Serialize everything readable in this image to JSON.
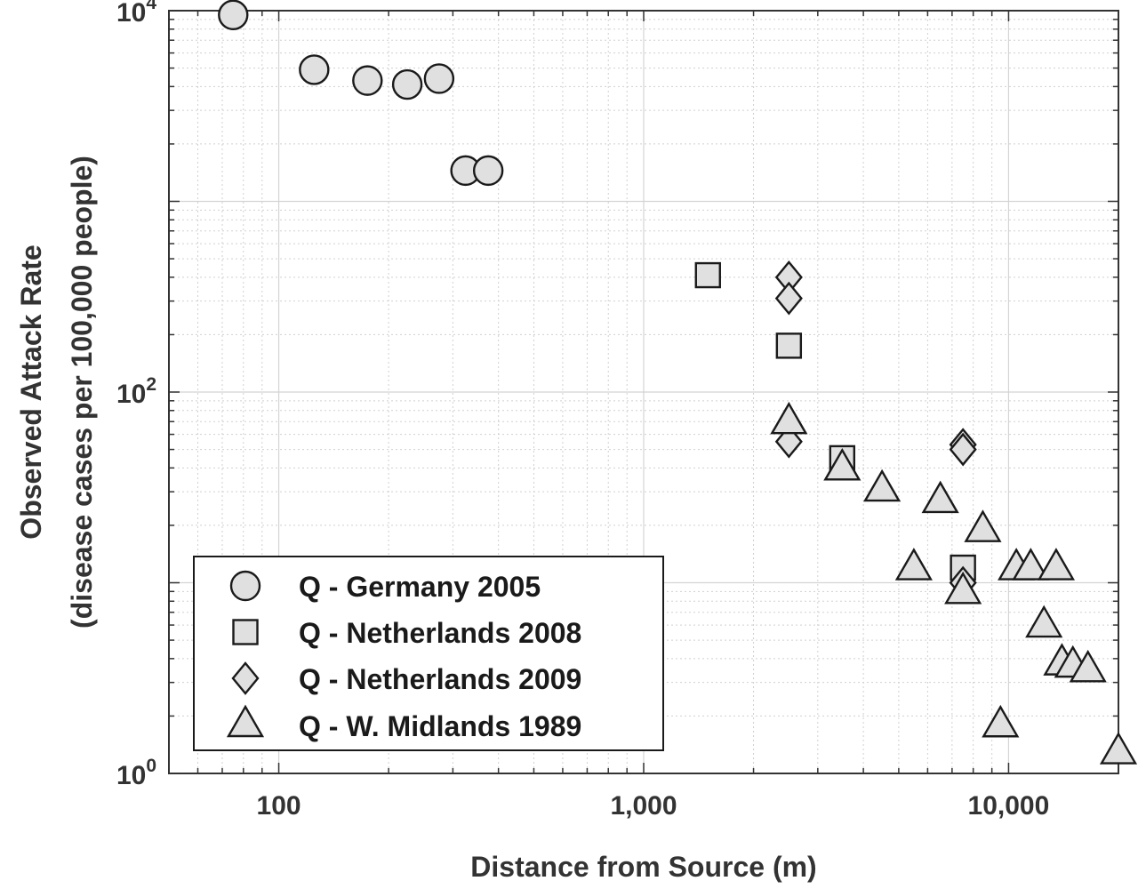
{
  "chart_data": {
    "type": "scatter",
    "xscale": "log",
    "yscale": "log",
    "xlim": [
      50,
      20000
    ],
    "ylim": [
      1,
      10000
    ],
    "xticks": [
      {
        "value": 100,
        "label": "100"
      },
      {
        "value": 1000,
        "label": "1,000"
      },
      {
        "value": 10000,
        "label": "10,000"
      }
    ],
    "yticks": [
      {
        "value": 1,
        "base": "10",
        "exp": "0"
      },
      {
        "value": 100,
        "base": "10",
        "exp": "2"
      },
      {
        "value": 10000,
        "base": "10",
        "exp": "4"
      }
    ],
    "xlabel": "Distance from Source (m)",
    "ylabel_line1": "Observed Attack Rate",
    "ylabel_line2": "(disease cases per 100,000 people)",
    "grid": true,
    "legend_position": "bottom-left",
    "series": [
      {
        "name": "Q - Germany 2005",
        "marker": "circle",
        "points": [
          [
            75,
            9500
          ],
          [
            125,
            4900
          ],
          [
            175,
            4300
          ],
          [
            225,
            4100
          ],
          [
            275,
            4400
          ],
          [
            325,
            1450
          ],
          [
            375,
            1450
          ]
        ]
      },
      {
        "name": "Q - Netherlands 2008",
        "marker": "square",
        "points": [
          [
            1500,
            410
          ],
          [
            2500,
            175
          ],
          [
            3500,
            45
          ],
          [
            7500,
            12
          ]
        ]
      },
      {
        "name": "Q - Netherlands 2009",
        "marker": "diamond",
        "points": [
          [
            2500,
            400
          ],
          [
            2500,
            310
          ],
          [
            2500,
            55
          ],
          [
            7500,
            53
          ],
          [
            7500,
            50
          ],
          [
            7500,
            10
          ]
        ]
      },
      {
        "name": "Q - W. Midlands 1989",
        "marker": "triangle",
        "points": [
          [
            2500,
            70
          ],
          [
            3500,
            40
          ],
          [
            4500,
            31
          ],
          [
            5500,
            12
          ],
          [
            6500,
            27
          ],
          [
            7500,
            9
          ],
          [
            8500,
            19
          ],
          [
            10500,
            12
          ],
          [
            11500,
            12
          ],
          [
            12500,
            6
          ],
          [
            13500,
            12
          ],
          [
            14000,
            3.8
          ],
          [
            15000,
            3.7
          ],
          [
            16500,
            3.5
          ],
          [
            9500,
            1.8
          ],
          [
            20000,
            1.3
          ]
        ]
      }
    ]
  },
  "style": {
    "marker_fill": "#e0e0e0",
    "marker_stroke": "#1a1a1a",
    "major_grid": "#d4d4d4",
    "minor_grid": "#d0d0d0",
    "axis_color": "#333333"
  }
}
